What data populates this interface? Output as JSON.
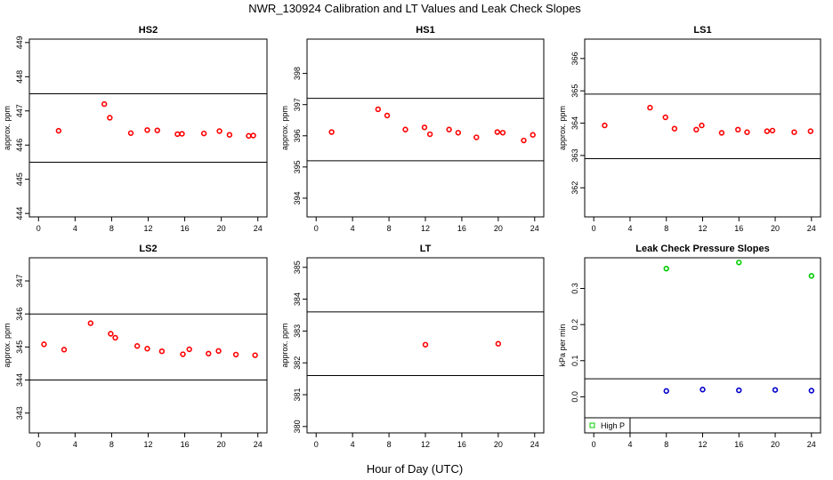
{
  "figure": {
    "title": "NWR_130924  Calibration and LT Values and Leak Check Slopes",
    "xlabel": "Hour of Day (UTC)"
  },
  "chart_data": [
    {
      "type": "scatter",
      "title": "HS2",
      "ylabel": "approx. ppm",
      "xlim": [
        -1,
        25
      ],
      "ylim": [
        443.9,
        449.1
      ],
      "xticks": [
        "0",
        "4",
        "8",
        "12",
        "16",
        "20",
        "24"
      ],
      "xtick_values": [
        0,
        4,
        8,
        12,
        16,
        20,
        24
      ],
      "yticks": [
        "444",
        "445",
        "446",
        "447",
        "448",
        "449"
      ],
      "ytick_values": [
        444,
        445,
        446,
        447,
        448,
        449
      ],
      "hlines": [
        447.5,
        445.5
      ],
      "marker_color": "#ff0000",
      "series": [
        {
          "x": [
            2.2,
            7.2,
            7.8,
            10.1,
            11.9,
            13.0,
            15.2,
            15.7,
            18.1,
            19.8,
            20.9,
            23.0,
            23.5
          ],
          "y": [
            446.42,
            447.2,
            446.8,
            446.35,
            446.44,
            446.43,
            446.32,
            446.33,
            446.34,
            446.41,
            446.3,
            446.27,
            446.28
          ]
        }
      ]
    },
    {
      "type": "scatter",
      "title": "HS1",
      "ylabel": "approx. ppm",
      "xlim": [
        -1,
        25
      ],
      "ylim": [
        393.4,
        399.1
      ],
      "xticks": [
        "0",
        "4",
        "8",
        "12",
        "16",
        "20",
        "24"
      ],
      "xtick_values": [
        0,
        4,
        8,
        12,
        16,
        20,
        24
      ],
      "yticks": [
        "394",
        "395",
        "396",
        "397",
        "398"
      ],
      "ytick_values": [
        394,
        395,
        396,
        397,
        398
      ],
      "hlines": [
        397.2,
        395.2
      ],
      "marker_color": "#ff0000",
      "series": [
        {
          "x": [
            1.7,
            6.8,
            7.8,
            9.8,
            11.9,
            12.5,
            14.6,
            15.6,
            17.6,
            19.9,
            20.5,
            22.8,
            23.8
          ],
          "y": [
            396.12,
            396.85,
            396.65,
            396.2,
            396.27,
            396.05,
            396.2,
            396.1,
            395.95,
            396.12,
            396.1,
            395.85,
            396.03
          ]
        }
      ]
    },
    {
      "type": "scatter",
      "title": "LS1",
      "ylabel": "approx. ppm",
      "xlim": [
        -1,
        25
      ],
      "ylim": [
        361.1,
        366.6
      ],
      "xticks": [
        "0",
        "4",
        "8",
        "12",
        "16",
        "20",
        "24"
      ],
      "xtick_values": [
        0,
        4,
        8,
        12,
        16,
        20,
        24
      ],
      "yticks": [
        "362",
        "363",
        "364",
        "365",
        "366"
      ],
      "ytick_values": [
        362,
        363,
        364,
        365,
        366
      ],
      "hlines": [
        364.9,
        362.9
      ],
      "marker_color": "#ff0000",
      "series": [
        {
          "x": [
            1.2,
            6.2,
            7.9,
            8.9,
            11.3,
            11.9,
            14.1,
            15.9,
            16.9,
            19.1,
            19.7,
            22.1,
            23.9
          ],
          "y": [
            363.93,
            364.48,
            364.18,
            363.83,
            363.8,
            363.93,
            363.7,
            363.8,
            363.72,
            363.75,
            363.77,
            363.72,
            363.75
          ]
        }
      ]
    },
    {
      "type": "scatter",
      "title": "LS2",
      "ylabel": "approx. ppm",
      "xlim": [
        -1,
        25
      ],
      "ylim": [
        342.4,
        347.7
      ],
      "xticks": [
        "0",
        "4",
        "8",
        "12",
        "16",
        "20",
        "24"
      ],
      "xtick_values": [
        0,
        4,
        8,
        12,
        16,
        20,
        24
      ],
      "yticks": [
        "343",
        "344",
        "345",
        "346",
        "347"
      ],
      "ytick_values": [
        343,
        344,
        345,
        346,
        347
      ],
      "hlines": [
        346.0,
        344.0
      ],
      "marker_color": "#ff0000",
      "series": [
        {
          "x": [
            0.6,
            2.8,
            5.7,
            7.9,
            8.4,
            10.8,
            11.9,
            13.5,
            15.8,
            16.5,
            18.6,
            19.7,
            21.6,
            23.7
          ],
          "y": [
            345.08,
            344.92,
            345.72,
            345.4,
            345.28,
            345.03,
            344.95,
            344.87,
            344.78,
            344.93,
            344.8,
            344.88,
            344.77,
            344.75
          ]
        }
      ]
    },
    {
      "type": "scatter",
      "title": "LT",
      "ylabel": "approx. ppm",
      "xlim": [
        -1,
        25
      ],
      "ylim": [
        379.8,
        385.3
      ],
      "xticks": [
        "0",
        "4",
        "8",
        "12",
        "16",
        "20",
        "24"
      ],
      "xtick_values": [
        0,
        4,
        8,
        12,
        16,
        20,
        24
      ],
      "yticks": [
        "380",
        "381",
        "382",
        "383",
        "384",
        "385"
      ],
      "ytick_values": [
        380,
        381,
        382,
        383,
        384,
        385
      ],
      "hlines": [
        383.6,
        381.6
      ],
      "marker_color": "#ff0000",
      "series": [
        {
          "x": [
            12.0,
            20.0
          ],
          "y": [
            382.57,
            382.6
          ]
        }
      ]
    },
    {
      "type": "scatter",
      "title": "Leak Check Pressure Slopes",
      "ylabel": "kPa per min",
      "xlim": [
        -1,
        25
      ],
      "ylim": [
        -0.1,
        0.385
      ],
      "xticks": [
        "0",
        "4",
        "8",
        "12",
        "16",
        "20",
        "24"
      ],
      "xtick_values": [
        0,
        4,
        8,
        12,
        16,
        20,
        24
      ],
      "yticks": [
        "0.0",
        "0.1",
        "0.2",
        "0.3"
      ],
      "ytick_values": [
        0,
        0.1,
        0.2,
        0.3
      ],
      "hlines": [
        0.05
      ],
      "legend": {
        "placement": "bottom-left",
        "label": "High P",
        "color": "#00cc00"
      },
      "series": [
        {
          "name": "High P",
          "color": "#00cc00",
          "x": [
            8,
            16,
            24
          ],
          "y": [
            0.355,
            0.372,
            0.335
          ]
        },
        {
          "color": "#0000cc",
          "x": [
            8,
            12,
            16,
            20,
            24
          ],
          "y": [
            0.016,
            0.02,
            0.018,
            0.019,
            0.017
          ]
        }
      ]
    }
  ]
}
